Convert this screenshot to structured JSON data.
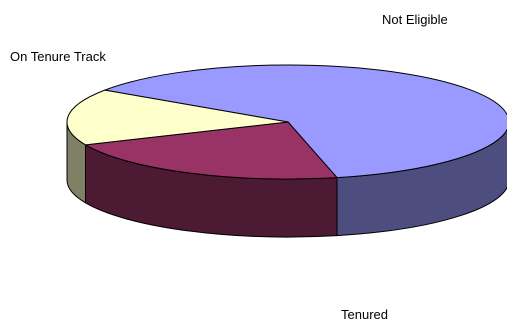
{
  "chart_data": {
    "type": "pie",
    "title": "",
    "three_d": true,
    "legend": "none",
    "slices": [
      {
        "label": "Tenured",
        "value": 62,
        "color": "#9999FF"
      },
      {
        "label": "On Tenure Track",
        "value": 22,
        "color": "#993366"
      },
      {
        "label": "Not Eligible",
        "value": 16,
        "color": "#FFFFCC"
      }
    ]
  }
}
